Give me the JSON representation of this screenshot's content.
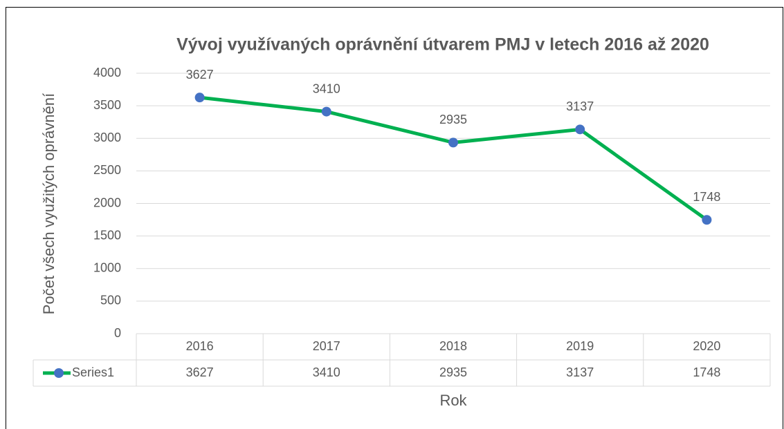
{
  "chart_data": {
    "type": "line",
    "title": "Vývoj využívaných oprávnění útvarem PMJ  v letech 2016 až 2020",
    "y_label": "Počet všech využitých oprávnění",
    "x_label": "Rok",
    "categories": [
      "2016",
      "2017",
      "2018",
      "2019",
      "2020"
    ],
    "series": [
      {
        "name": "Series1",
        "color": "#00b050",
        "marker_color": "#4472c4",
        "values": [
          3627,
          3410,
          2935,
          3137,
          1748
        ]
      }
    ],
    "ylim": [
      0,
      4000
    ],
    "yticks": [
      0,
      500,
      1000,
      1500,
      2000,
      2500,
      3000,
      3500,
      4000
    ],
    "grid": true
  }
}
